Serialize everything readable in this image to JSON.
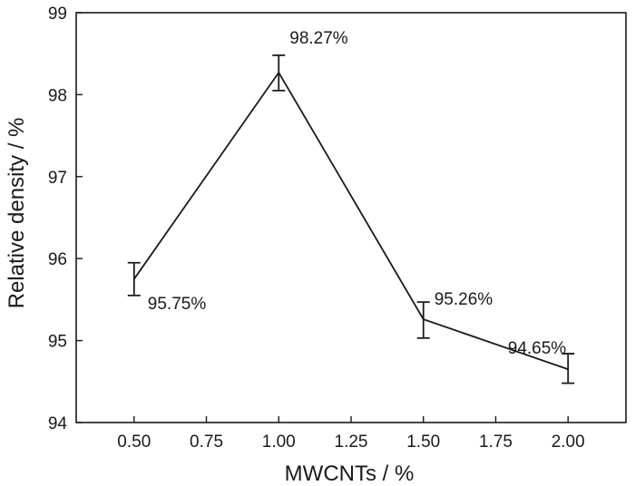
{
  "chart_data": {
    "type": "line",
    "title": "",
    "xlabel": "MWCNTs / %",
    "ylabel": "Relative density / %",
    "xlim": [
      0.3,
      2.2
    ],
    "ylim": [
      94,
      99
    ],
    "x_ticks": [
      "0.50",
      "0.75",
      "1.00",
      "1.25",
      "1.50",
      "1.75",
      "2.00"
    ],
    "y_ticks": [
      "94",
      "95",
      "96",
      "97",
      "98",
      "99"
    ],
    "grid": false,
    "series": [
      {
        "x": [
          0.5,
          1.0,
          1.5,
          2.0
        ],
        "values": [
          95.75,
          98.27,
          95.26,
          94.65
        ],
        "error_low": [
          95.55,
          98.05,
          95.03,
          94.48
        ],
        "error_high": [
          95.95,
          98.48,
          95.47,
          94.84
        ],
        "data_labels": [
          "95.75%",
          "98.27%",
          "95.26%",
          "94.65%"
        ],
        "color": "#1a1a1a"
      }
    ]
  }
}
